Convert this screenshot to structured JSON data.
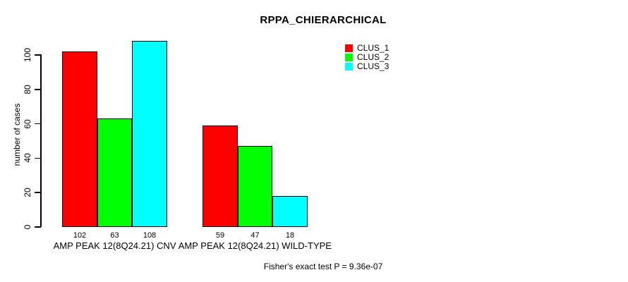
{
  "chart_data": {
    "type": "bar",
    "title": "RPPA_CHIERARCHICAL",
    "ylabel": "number of cases",
    "xlabel": "",
    "ylim": [
      0,
      100
    ],
    "y_ticks": [
      0,
      20,
      40,
      60,
      80,
      100
    ],
    "grid": false,
    "legend_position": "top-right-inside",
    "categories": [
      "AMP PEAK 12(8Q24.21) CNV",
      "AMP PEAK 12(8Q24.21) WILD-TYPE"
    ],
    "series": [
      {
        "name": "CLUS_1",
        "color": "#FF0000",
        "values": [
          102,
          59
        ]
      },
      {
        "name": "CLUS_2",
        "color": "#00FF00",
        "values": [
          63,
          47
        ]
      },
      {
        "name": "CLUS_3",
        "color": "#00FFFF",
        "values": [
          108,
          18
        ]
      }
    ],
    "show_bar_value_labels": true,
    "annotation": "Fisher's exact test P = 9.36e-07",
    "bar_border_color": "#000000",
    "background_color": "#FFFFFF",
    "text_color": "#000000"
  }
}
